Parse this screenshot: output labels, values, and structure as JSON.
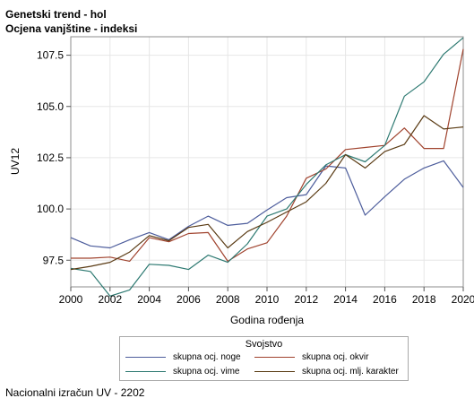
{
  "titles": {
    "line1": "Genetski trend - hol",
    "line2": "Ocjena vanjštine - indeksi"
  },
  "footnote": "Nacionalni izračun UV - 2202",
  "legend": {
    "title": "Svojstvo"
  },
  "chart_data": {
    "type": "line",
    "xlabel": "Godina rođenja",
    "ylabel": "UV12",
    "xlim": [
      2000,
      2020
    ],
    "ylim": [
      96.2,
      108.4
    ],
    "x_ticks": [
      2000,
      2002,
      2004,
      2006,
      2008,
      2010,
      2012,
      2014,
      2016,
      2018,
      2020
    ],
    "y_ticks": [
      97.5,
      100.0,
      102.5,
      105.0,
      107.5
    ],
    "y_tick_labels": [
      "97.5",
      "100.0",
      "102.5",
      "105.0",
      "107.5"
    ],
    "grid": true,
    "legend_position": "bottom",
    "x": [
      2000,
      2001,
      2002,
      2003,
      2004,
      2005,
      2006,
      2007,
      2008,
      2009,
      2010,
      2011,
      2012,
      2013,
      2014,
      2015,
      2016,
      2017,
      2018,
      2019,
      2020
    ],
    "series": [
      {
        "name": "skupna ocj. noge",
        "color": "#4d5d9c",
        "values": [
          98.6,
          98.2,
          98.1,
          98.5,
          98.85,
          98.5,
          99.15,
          99.65,
          99.2,
          99.3,
          99.95,
          100.55,
          100.7,
          102.1,
          102.0,
          99.7,
          100.6,
          101.45,
          102.0,
          102.35,
          101.05
        ]
      },
      {
        "name": "skupna ocj. okvir",
        "color": "#a0432e",
        "values": [
          97.6,
          97.6,
          97.65,
          97.45,
          98.6,
          98.4,
          98.8,
          98.85,
          97.45,
          98.05,
          98.35,
          99.65,
          101.5,
          101.95,
          102.9,
          103.0,
          103.1,
          103.95,
          102.95,
          102.95,
          107.8
        ]
      },
      {
        "name": "skupna ocj. vime",
        "color": "#2e7a72",
        "values": [
          97.1,
          96.95,
          95.75,
          96.05,
          97.3,
          97.25,
          97.05,
          97.75,
          97.4,
          98.3,
          99.65,
          100.0,
          101.2,
          102.15,
          102.65,
          102.3,
          103.1,
          105.5,
          106.2,
          107.55,
          108.35
        ]
      },
      {
        "name": "skupna ocj. mlj. karakter",
        "color": "#5a3b14",
        "values": [
          97.05,
          97.2,
          97.4,
          97.9,
          98.7,
          98.45,
          99.1,
          99.25,
          98.1,
          98.9,
          99.35,
          99.85,
          100.35,
          101.25,
          102.65,
          102.0,
          102.8,
          103.15,
          104.55,
          103.9,
          104.0
        ]
      }
    ]
  }
}
